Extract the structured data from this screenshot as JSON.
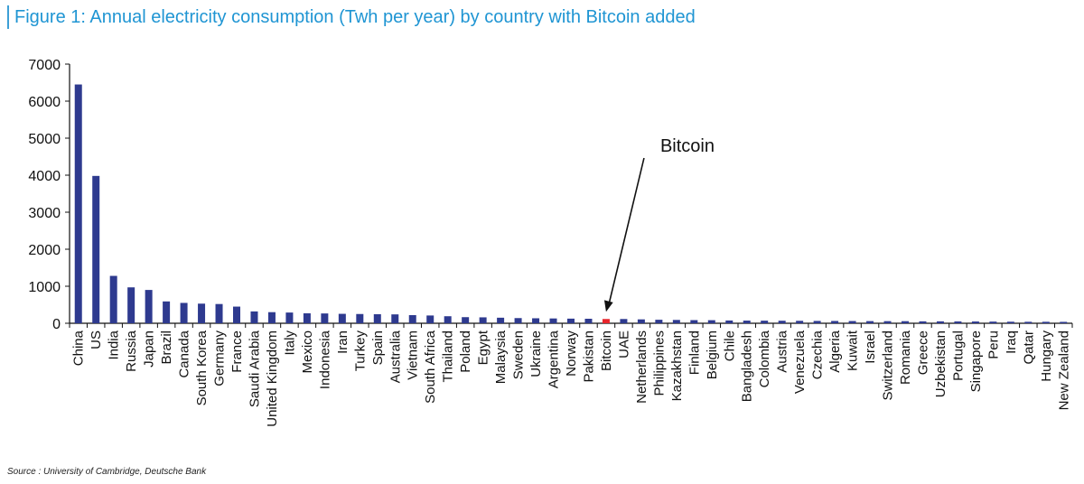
{
  "figure": {
    "title": "Figure 1: Annual electricity consumption (Twh per year) by country with Bitcoin added",
    "source": "Source : University of Cambridge, Deutsche Bank"
  },
  "colors": {
    "bar": "#2e3a8f",
    "highlight": "#e8252b",
    "title": "#1f95d3",
    "axis": "#111111"
  },
  "chart_data": {
    "type": "bar",
    "title": "Figure 1: Annual electricity consumption (Twh per year) by country with Bitcoin added",
    "xlabel": "",
    "ylabel": "",
    "ylim": [
      0,
      7000
    ],
    "yticks": [
      0,
      1000,
      2000,
      3000,
      4000,
      5000,
      6000,
      7000
    ],
    "grid": false,
    "legend": "none",
    "highlight": "Bitcoin",
    "annotation": "Bitcoin",
    "categories": [
      "China",
      "US",
      "India",
      "Russia",
      "Japan",
      "Brazil",
      "Canada",
      "South Korea",
      "Germany",
      "France",
      "Saudi Arabia",
      "United Kingdom",
      "Italy",
      "Mexico",
      "Indonesia",
      "Iran",
      "Turkey",
      "Spain",
      "Australia",
      "Vietnam",
      "South Africa",
      "Thailand",
      "Poland",
      "Egypt",
      "Malaysia",
      "Sweden",
      "Ukraine",
      "Argentina",
      "Norway",
      "Pakistan",
      "Bitcoin",
      "UAE",
      "Netherlands",
      "Philippines",
      "Kazakhstan",
      "Finland",
      "Belgium",
      "Chile",
      "Bangladesh",
      "Colombia",
      "Austria",
      "Venezuela",
      "Czechia",
      "Algeria",
      "Kuwait",
      "Israel",
      "Switzerland",
      "Romania",
      "Greece",
      "Uzbekistan",
      "Portugal",
      "Singapore",
      "Peru",
      "Iraq",
      "Qatar",
      "Hungary",
      "New Zealand"
    ],
    "values": [
      6450,
      3980,
      1280,
      970,
      900,
      590,
      550,
      530,
      520,
      450,
      320,
      300,
      290,
      270,
      265,
      255,
      250,
      245,
      240,
      220,
      210,
      190,
      165,
      160,
      150,
      140,
      135,
      130,
      125,
      122,
      115,
      115,
      105,
      95,
      90,
      85,
      83,
      75,
      72,
      70,
      68,
      66,
      63,
      62,
      60,
      58,
      57,
      56,
      52,
      52,
      50,
      48,
      45,
      42,
      40,
      40,
      38
    ]
  }
}
